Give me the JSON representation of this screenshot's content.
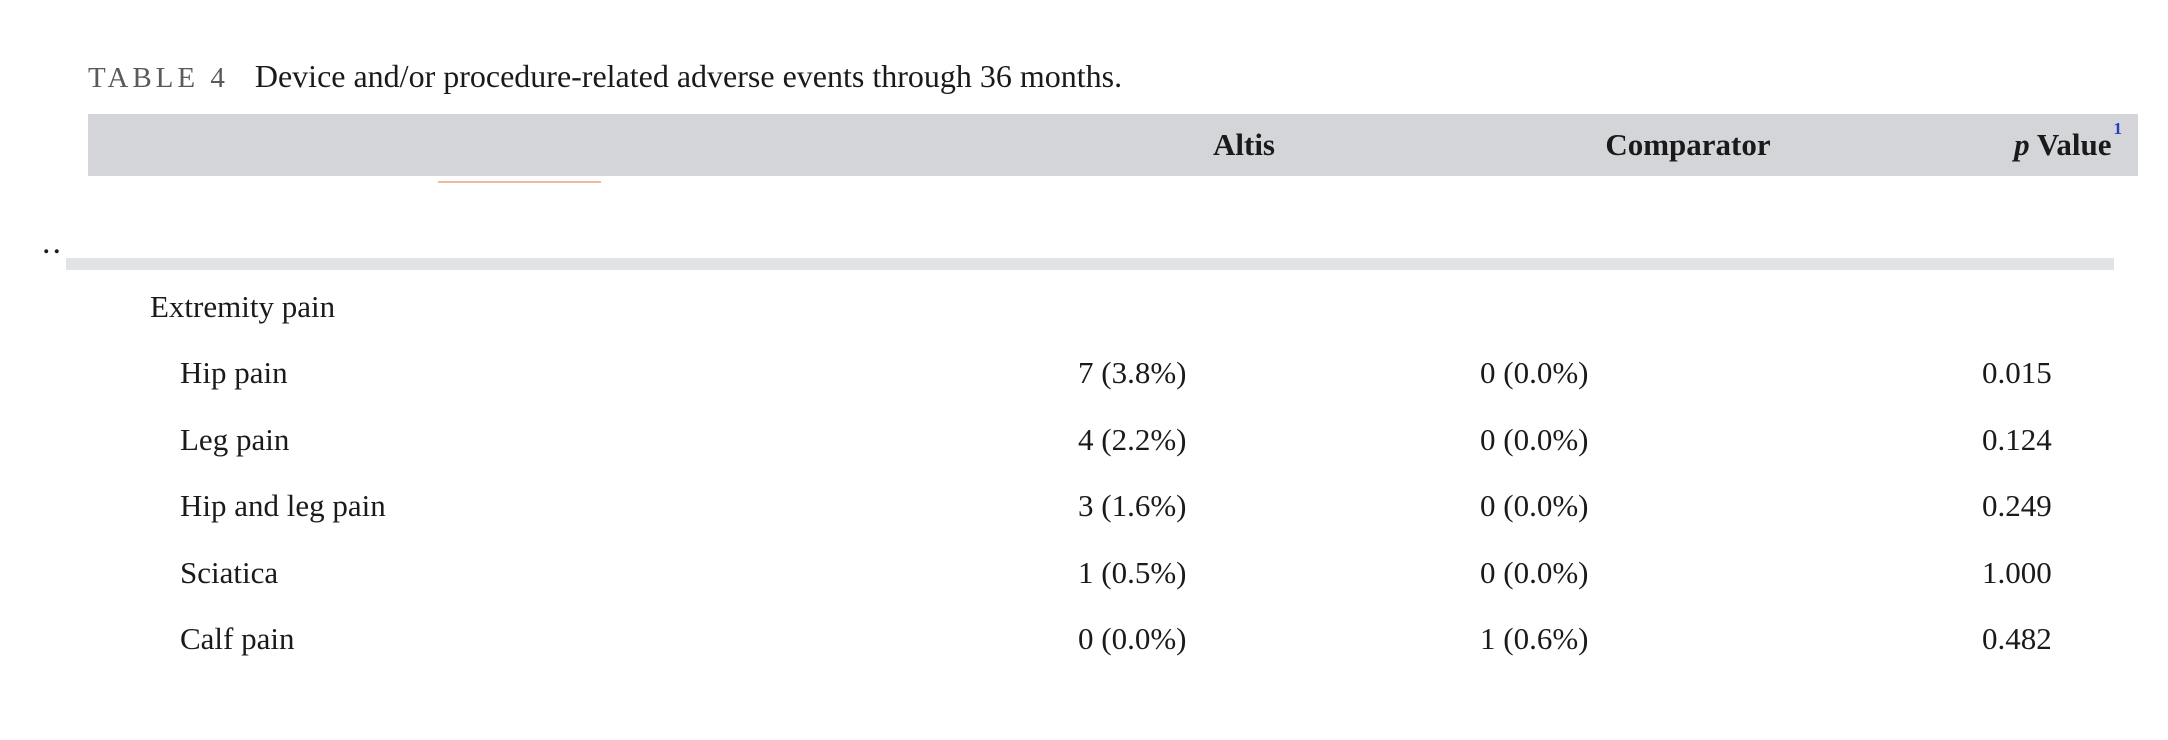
{
  "table": {
    "caption_label": "TABLE 4",
    "caption_text": "Device and/or procedure-related adverse events through 36 months.",
    "headers": {
      "altis": "Altis",
      "comparator": "Comparator",
      "p_italic": "p",
      "p_rest": " Value",
      "p_footnote": "1"
    },
    "ellipsis": "..",
    "group": "Extremity pain",
    "rows": [
      {
        "label": "Hip pain",
        "altis": "7 (3.8%)",
        "comparator": "0 (0.0%)",
        "p": "0.015"
      },
      {
        "label": "Leg pain",
        "altis": "4 (2.2%)",
        "comparator": "0 (0.0%)",
        "p": "0.124"
      },
      {
        "label": "Hip and leg pain",
        "altis": "3 (1.6%)",
        "comparator": "0 (0.0%)",
        "p": "0.249"
      },
      {
        "label": "Sciatica",
        "altis": "1 (0.5%)",
        "comparator": "0 (0.0%)",
        "p": "1.000"
      },
      {
        "label": "Calf pain",
        "altis": "0 (0.0%)",
        "comparator": "1 (0.6%)",
        "p": "0.482"
      }
    ]
  },
  "colors": {
    "header_band": "#d4d5d8",
    "footnote_link": "#1f3fbf",
    "rule": "#e2e3e5"
  }
}
